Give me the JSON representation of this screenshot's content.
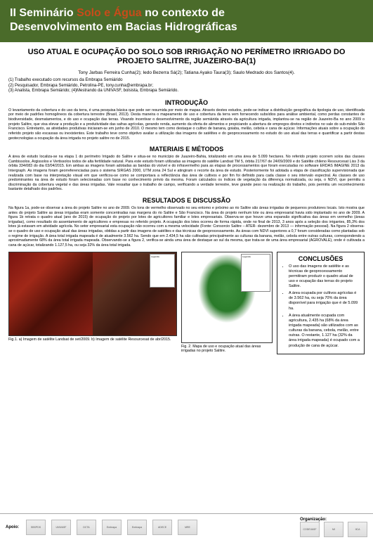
{
  "header": {
    "prefix": "II Seminário",
    "highlight": "Solo e Água",
    "suffix": "no contexto de",
    "line2": "Desenvolvimento em Bacias Hidrográficas",
    "bg_color": "#4a6b2a",
    "highlight_color": "#c84b1a"
  },
  "title": "USO ATUAL E OCUPAÇÃO DO SOLO SOB IRRIGAÇÃO NO PERÍMETRO IRRIGADO DO PROJETO SALITRE, JUAZEIRO-BA(1)",
  "authors": "Tony Jarbas Ferreira Cunha(2); Iedo Bezerra Sá(2); Tatiana Ayako Taura(3); Saulo Medrado dos Santos(4).",
  "affiliations": [
    "(1) Trabalho executado com recursos da Embrapa Semiárido",
    "(2) Pesquisador, Embrapa Semiárido, Petrolina-PE, tony.cunha@embrapa.br;",
    "(3) Analista, Embrapa Semiárido; (4)Mestrando da UNIVASF, bolsista, Embrapa Semiárido."
  ],
  "sections": {
    "introducao": {
      "heading": "INTRODUÇÃO",
      "text": "O levantamento da cobertura e do uso da terra, é uma pesquisa básica que pode ser resumida por meio de mapas. Através destes estudos, pode-se indicar a distribuição geográfica da tipologia de uso, identificada por meio de padrões homogêneos da cobertura terrestre (Brasil, 2013). Desta maneira o mapeamento de uso e cobertura da terra vem fornecendo subsídios para análise ambiental, como perdas constantes de biodiversidade, desmatamentos, e do uso e ocupação das terras. Visando incentivar o desenvolvimento da região semiárida através da agricultura irrigada, implantou-se na região de Juazeiro-Ba no ano 2009 o projeto Salitre, que visa elevar a produção e a produtividade das safras agrícolas, gerando renda, aumento da oferta de alimentos e propiciando a abertura de empregos diretos e indiretos no vale do sub-médio São Francisco. Entretanto, as atividades produtivas iniciaram-se em junho de 2010. O mesmo tem como destaque o cultivo de banana, goiaba, melão, cebola e cana de açúcar. Informações atuais sobre a ocupação do referido projeto são escassas ou inexistentes. Este trabalho teve como objetivo avaliar a utilização das imagens de satélites e do geoprocessamento no estudo do uso atual das terras e quantificar a partir destas geotecnologias a ocupação da área irrigada no projeto salitre no de 2015."
    },
    "materiais": {
      "heading": "MATERIAIS E MÉTODOS",
      "text": "A área de estudo localiza-se na etapa 1 do perímetro Irrigado do Salitre e situa-se no município de Juazeiro-Bahia, totalizando em uma área de 5.099 hectares. No referido projeto ocorrem solos das classes Cambissolos, Argissolos e Vertissolos todos de alta fertilidade natural. Para este estudo foram utilizadas as imagens do satélite Landsat TM 5, órbita 217/67 de 24/09/2009 e do Satélite chileno Resourcesat Liss 3 da órbita 334/083 do dia 03/04/2015. Em ambas as imagens foram adotadas as bandas do visível e do infravermelho para as etapas de processamentos que foram executadas no software ERDAS IMAGINE 2013 da Intergraph. As imagens foram georreferenciadas para o sistema SIRGAS 2000, UTM zona 24 Sul e atingiram o recorte da área de estudo. Posteriormente foi adotada a etapa de classificação supervisionada que realizada com base na interpretação visual em que verificou-se como se comportava a reflectância das área de cultivos e por fim foi definido para cada classe o seu intervalo espectral. As classes de uso predominantes na área de estudo foram selecionadas com base no conhecimento prévio da mesma. Foram calculados os índices de vegetação da diferença normalizada, ou seja, o NDVI, que permitiu a discriminação da cobertura vegetal e das áreas irrigadas. Vale ressaltar que o trabalho de campo, verificando a verdade terrestre, teve grande peso na realização do trabalho, pois permitiu um reconhecimento bastante detalhado dos padrões."
    },
    "resultados": {
      "heading": "RESULTADOS E DISCUSSÃO",
      "text": "Na figura 1a, pode-se observar a área do projeto Salitre no ano de 2009. Os tons de vermelho observado no seu entorno e próximo ao rio Salitre são áreas irrigadas de pequenos produtores locais. Isto mostra que antes do projeto Salitre as áreas irrigadas eram somente concentradas nas margens do rio Salitre e São Francisco. Na área do projeto nenhum lote ou área empresarial havia sido implantado no ano de 2009. A figura 1b retrata o quadro atual (ano de 2015) de ocupação do projeto por lotes de agricultores familiar e lotes empresariais. Observa-se que houve uma expansão significativa das áreas em vermelho (áreas irrigadas), como resultado do assentamento de agricultores e empresas no referido projeto. A ocupação dos lotes ocorreu de forma rápida, onde no final de 2013, 3 anos após a seleção dos irrigantes, 85,3% dos lotes já estavam em atividade agrícola. No setor empresarial esta ocupação não ocorreu com a mesma velocidade (Fonte: Consorcio Salitre – ATER- dezembro de 2013 — informação pessoal). Na figura 2 observa-se o quadro de uso e ocupação atual das áreas irrigadas, obtidas a partir das imagens de satélites e das técnicas de geoprocessamento. As áreas com NDVI superiores a 0,7 foram consideradas como plantadas sob o regime de irrigação. A área total irrigada mapeada é de atualmente 3.562 ha. Sendo que em 2.434,5 ha são cultivadas principalmente as culturas da banana, melão, cebola entre outras culturas, correspondendo a aproximadamente 68% da área total irrigada mapeada. Observando-se a figura 2, verifica-se ainda uma área de destaque ao sul da mesma, que trata-se de uma área empresarial (AGROVALE), onde é cultivada a cana de açúcar, totalizando 1.127,5 ha, ou seja 32% da área total irrigada."
    }
  },
  "figures": {
    "fig1": {
      "caption": "Fig.1. a) Imagem de satélite Landsat de set/2009. b) Imagem de satélite Resourcesat de abr/2015."
    },
    "fig2": {
      "caption": "Fig. 2. Mapa de uso e ocupação atual das áreas irrigadas no projeto Salitre."
    }
  },
  "conclusions": {
    "heading": "CONCLUSÕES",
    "items": [
      "O uso das imagens de satélite e as técnicas de geoprocessamento permitiram produzir o quadro atual de uso e ocupação das terras do projeto Salitre.",
      "A área ocupada por cultivos agrícolas é de 3.562 ha, ou seja 70% da área disponível para irrigação que é de 5.099 ha.",
      "A área atualmente ocupada com agricultura, 2.435 ha (68% da área irrigada mapeada) são utilizados com as culturas da banana, cebola, melão, entre outras. O restante, 1.127 ha (32% da área irrigada mapeada) é ocupado com a produção de cana de açúcar."
    ]
  },
  "footer": {
    "apoio_label": "Apoio:",
    "org_label": "Organização:",
    "logos": [
      "SBSPDS",
      "UNIVASF",
      "DCTA",
      "Embrapa",
      "Embrapa",
      "ADECE",
      "MRE"
    ],
    "org_logos": [
      "CODEVASF",
      "MI",
      "IICA"
    ]
  }
}
